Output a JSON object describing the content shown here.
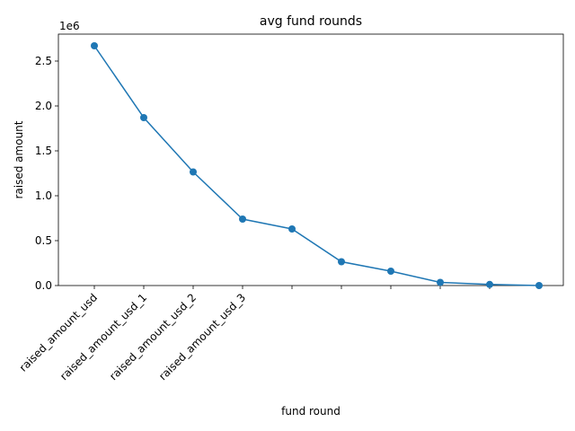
{
  "chart_data": {
    "type": "line",
    "title": "avg fund rounds",
    "xlabel": "fund round",
    "ylabel": "raised amount",
    "y_offset_label": "1e6",
    "categories": [
      "raised_amount_usd",
      "raised_amount_usd_1",
      "raised_amount_usd_2",
      "raised_amount_usd_3",
      null,
      null,
      null,
      null,
      null,
      null
    ],
    "series": [
      {
        "name": "raised amount",
        "color": "#1f77b4",
        "values": [
          2670000,
          1870000,
          1265000,
          740000,
          630000,
          265000,
          160000,
          35000,
          12000,
          0
        ]
      }
    ],
    "ylim": [
      0,
      2800000
    ],
    "yticks": [
      {
        "value": 0,
        "label": "0.0"
      },
      {
        "value": 500000,
        "label": "0.5"
      },
      {
        "value": 1000000,
        "label": "1.0"
      },
      {
        "value": 1500000,
        "label": "1.5"
      },
      {
        "value": 2000000,
        "label": "2.0"
      },
      {
        "value": 2500000,
        "label": "2.5"
      }
    ],
    "grid": false
  }
}
